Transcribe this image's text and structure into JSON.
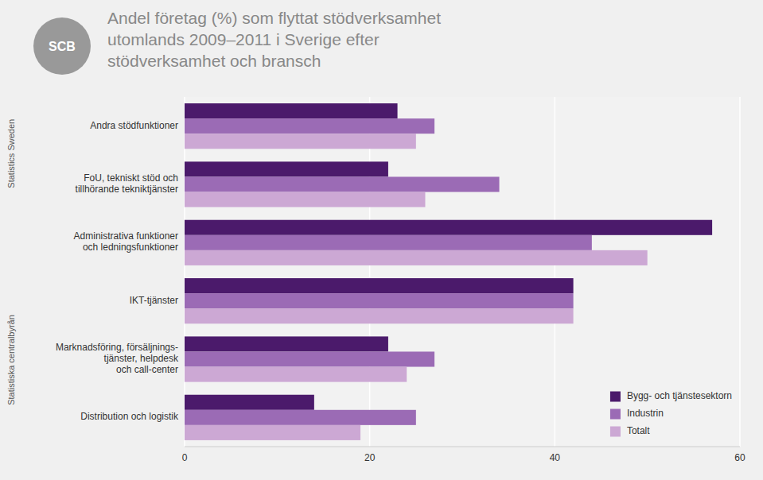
{
  "chart_data": {
    "type": "bar",
    "orientation": "horizontal",
    "title": "Andel företag (%) som flyttat stödverksamhet\nutomlands 2009–2011 i Sverige efter\nstödverksamhet och bransch",
    "categories": [
      "Andra stödfunktioner",
      "FoU, tekniskt stöd och\ntillhörande tekniktjänster",
      "Administrativa funktioner\noch ledningsfunktioner",
      "IKT-tjänster",
      "Marknadsföring, försäljnings-\ntjänster, helpdesk\noch call-center",
      "Distribution och logistik"
    ],
    "series": [
      {
        "name": "Bygg- och tjänstesektorn",
        "color": "#4b1a6b",
        "values": [
          23,
          22,
          57,
          42,
          22,
          14
        ]
      },
      {
        "name": "Industrin",
        "color": "#9b6bb5",
        "values": [
          27,
          34,
          44,
          42,
          27,
          25
        ]
      },
      {
        "name": "Totalt",
        "color": "#cca8d4",
        "values": [
          25,
          26,
          50,
          42,
          24,
          19
        ]
      }
    ],
    "xlim": [
      0,
      60
    ],
    "xticks": [
      0,
      20,
      40,
      60
    ],
    "grid": true,
    "legend": "lower right",
    "annotations": [
      "Statistics Sweden",
      "Statistiska centralbyrån",
      "SCB"
    ]
  }
}
